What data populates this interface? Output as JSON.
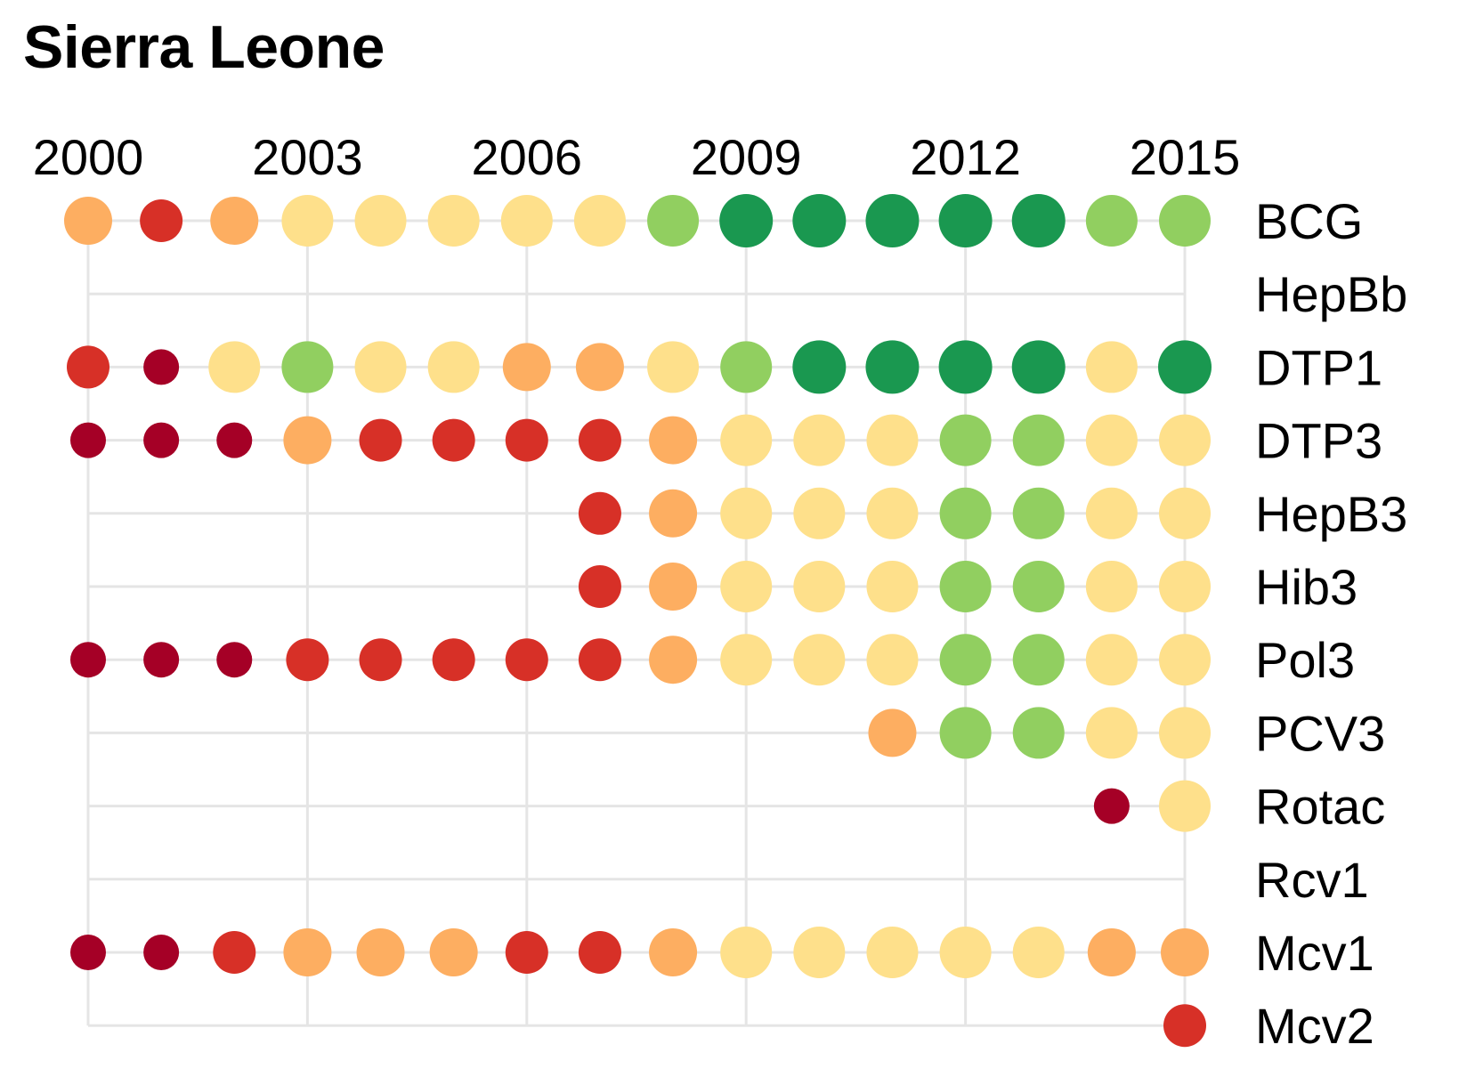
{
  "chart_data": {
    "type": "scatter",
    "title": "Sierra Leone",
    "x_ticks": [
      "2000",
      "2003",
      "2006",
      "2009",
      "2012",
      "2015"
    ],
    "x_range": [
      2000,
      2015
    ],
    "categories": [
      "BCG",
      "HepBb",
      "DTP1",
      "DTP3",
      "HepB3",
      "Hib3",
      "Pol3",
      "PCV3",
      "Rotac",
      "Rcv1",
      "Mcv1",
      "Mcv2"
    ],
    "grid": true,
    "legend": "none",
    "level_colors": {
      "1": "#a50026",
      "2": "#d73027",
      "3": "#fdae61",
      "4": "#fee08b",
      "5": "#91cf60",
      "6": "#1a9850"
    },
    "series": [
      {
        "vaccine": "BCG",
        "years": [
          2000,
          2001,
          2002,
          2003,
          2004,
          2005,
          2006,
          2007,
          2008,
          2009,
          2010,
          2011,
          2012,
          2013,
          2014,
          2015
        ],
        "levels": [
          3,
          2,
          3,
          4,
          4,
          4,
          4,
          4,
          5,
          6,
          6,
          6,
          6,
          6,
          5,
          5
        ]
      },
      {
        "vaccine": "HepBb",
        "years": [],
        "levels": []
      },
      {
        "vaccine": "DTP1",
        "years": [
          2000,
          2001,
          2002,
          2003,
          2004,
          2005,
          2006,
          2007,
          2008,
          2009,
          2010,
          2011,
          2012,
          2013,
          2014,
          2015
        ],
        "levels": [
          2,
          1,
          4,
          5,
          4,
          4,
          3,
          3,
          4,
          5,
          6,
          6,
          6,
          6,
          4,
          6
        ]
      },
      {
        "vaccine": "DTP3",
        "years": [
          2000,
          2001,
          2002,
          2003,
          2004,
          2005,
          2006,
          2007,
          2008,
          2009,
          2010,
          2011,
          2012,
          2013,
          2014,
          2015
        ],
        "levels": [
          1,
          1,
          1,
          3,
          2,
          2,
          2,
          2,
          3,
          4,
          4,
          4,
          5,
          5,
          4,
          4
        ]
      },
      {
        "vaccine": "HepB3",
        "years": [
          2007,
          2008,
          2009,
          2010,
          2011,
          2012,
          2013,
          2014,
          2015
        ],
        "levels": [
          2,
          3,
          4,
          4,
          4,
          5,
          5,
          4,
          4
        ]
      },
      {
        "vaccine": "Hib3",
        "years": [
          2007,
          2008,
          2009,
          2010,
          2011,
          2012,
          2013,
          2014,
          2015
        ],
        "levels": [
          2,
          3,
          4,
          4,
          4,
          5,
          5,
          4,
          4
        ]
      },
      {
        "vaccine": "Pol3",
        "years": [
          2000,
          2001,
          2002,
          2003,
          2004,
          2005,
          2006,
          2007,
          2008,
          2009,
          2010,
          2011,
          2012,
          2013,
          2014,
          2015
        ],
        "levels": [
          1,
          1,
          1,
          2,
          2,
          2,
          2,
          2,
          3,
          4,
          4,
          4,
          5,
          5,
          4,
          4
        ]
      },
      {
        "vaccine": "PCV3",
        "years": [
          2011,
          2012,
          2013,
          2014,
          2015
        ],
        "levels": [
          3,
          5,
          5,
          4,
          4
        ]
      },
      {
        "vaccine": "Rotac",
        "years": [
          2014,
          2015
        ],
        "levels": [
          1,
          4
        ]
      },
      {
        "vaccine": "Rcv1",
        "years": [],
        "levels": []
      },
      {
        "vaccine": "Mcv1",
        "years": [
          2000,
          2001,
          2002,
          2003,
          2004,
          2005,
          2006,
          2007,
          2008,
          2009,
          2010,
          2011,
          2012,
          2013,
          2014,
          2015
        ],
        "levels": [
          1,
          1,
          2,
          3,
          3,
          3,
          2,
          2,
          3,
          4,
          4,
          4,
          4,
          4,
          3,
          3
        ]
      },
      {
        "vaccine": "Mcv2",
        "years": [
          2015
        ],
        "levels": [
          2
        ]
      }
    ]
  }
}
